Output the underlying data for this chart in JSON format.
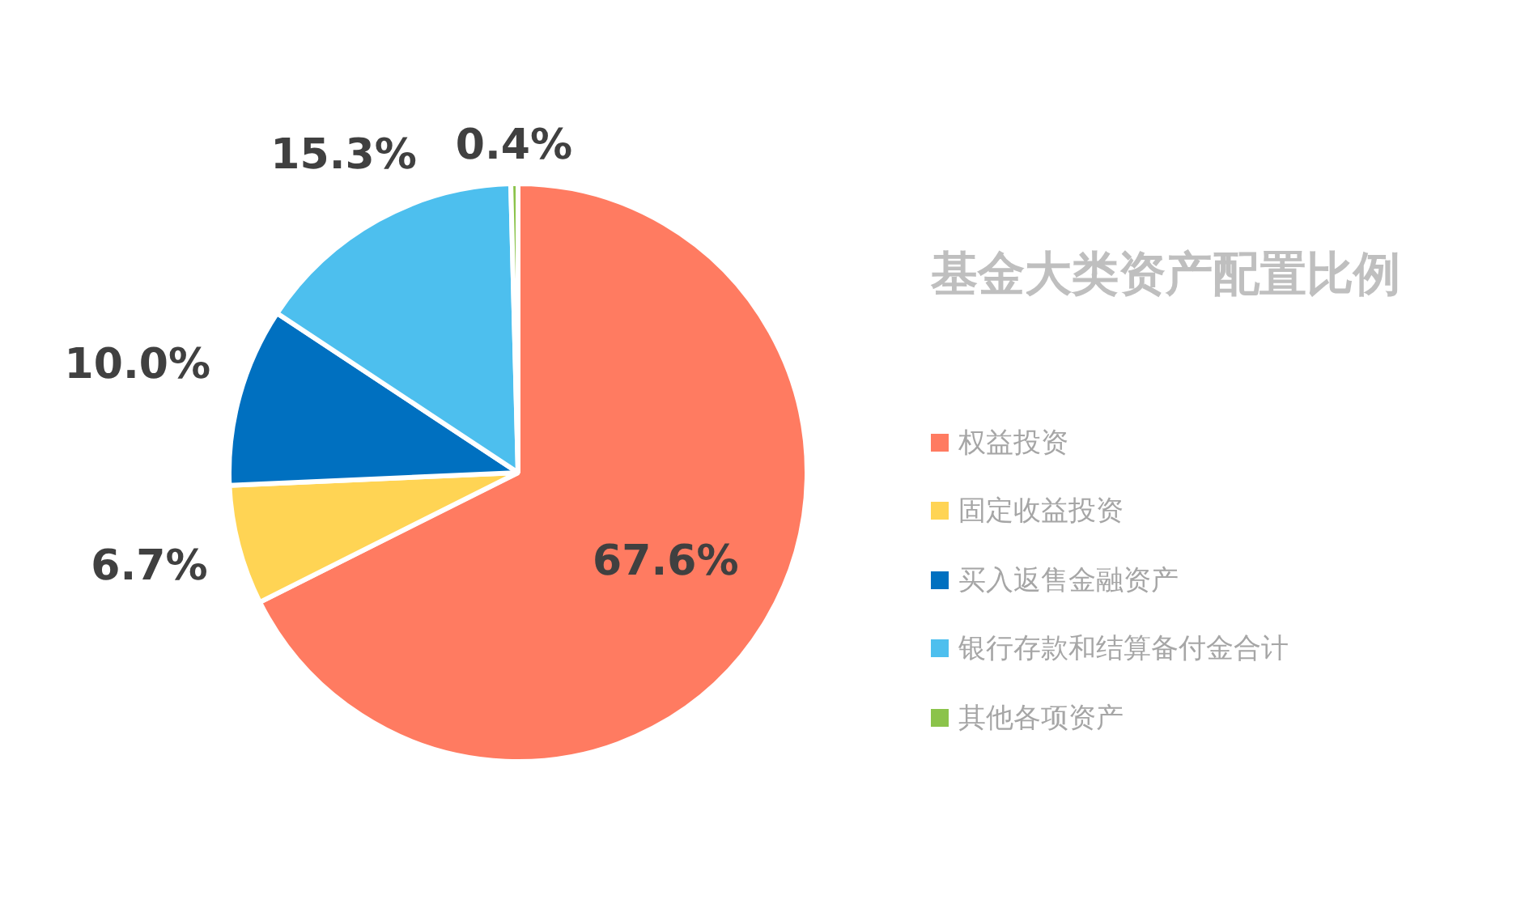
{
  "chart_data": {
    "type": "pie",
    "title": "基金大类资产配置比例",
    "categories": [
      "权益投资",
      "固定收益投资",
      "买入返售金融资产",
      "银行存款和结算备付金合计",
      "其他各项资产"
    ],
    "values": [
      67.6,
      6.7,
      10.0,
      15.3,
      0.4
    ],
    "colors": [
      "#ff7b61",
      "#ffd454",
      "#0070c0",
      "#4dbfee",
      "#8bc34a"
    ],
    "value_labels": [
      "67.6%",
      "6.7%",
      "10.0%",
      "15.3%",
      "0.4%"
    ],
    "legend": "right"
  }
}
